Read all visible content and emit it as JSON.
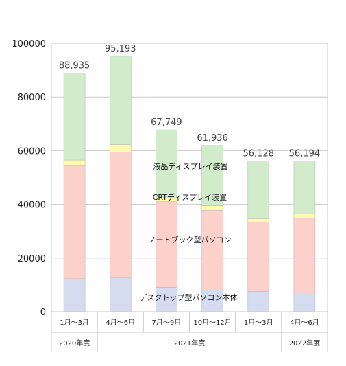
{
  "chart_data": {
    "type": "bar",
    "stacked": true,
    "ylim": [
      0,
      100000
    ],
    "yticks": [
      "0",
      "20000",
      "40000",
      "60000",
      "80000",
      "100000"
    ],
    "grid": true,
    "categories": [
      "1月～3月",
      "4月～6月",
      "7月～9月",
      "10月～12月",
      "1月～3月",
      "4月～6月"
    ],
    "category_colors": [
      "#222222",
      "#222222",
      "#222222",
      "#222222",
      "#222222",
      "#e8312f"
    ],
    "year_groups": [
      {
        "label": "2020年度",
        "span": 1
      },
      {
        "label": "2021年度",
        "span": 4
      },
      {
        "label": "2022年度",
        "span": 1
      }
    ],
    "totals": [
      "88,935",
      "95,193",
      "67,749",
      "61,936",
      "56,128",
      "56,194"
    ],
    "total_colors": [
      "#444444",
      "#444444",
      "#444444",
      "#444444",
      "#444444",
      "#e8312f"
    ],
    "series": [
      {
        "name": "デスクトップ型パソコン本体",
        "color": "#d6dcf0",
        "values": [
          12300,
          12800,
          9100,
          8100,
          7500,
          7100
        ]
      },
      {
        "name": "ノートブック型パソコン",
        "color": "#fdd1cb",
        "values": [
          42000,
          46700,
          31900,
          29700,
          25900,
          27800
        ]
      },
      {
        "name": "CRTディスプレイ装置",
        "color": "#fefcae",
        "values": [
          2200,
          2800,
          1700,
          1700,
          1300,
          1500
        ]
      },
      {
        "name": "液晶ディスプレイ装置",
        "color": "#d2eccb",
        "values": [
          32435,
          32893,
          25049,
          22436,
          21428,
          19794
        ]
      }
    ]
  }
}
